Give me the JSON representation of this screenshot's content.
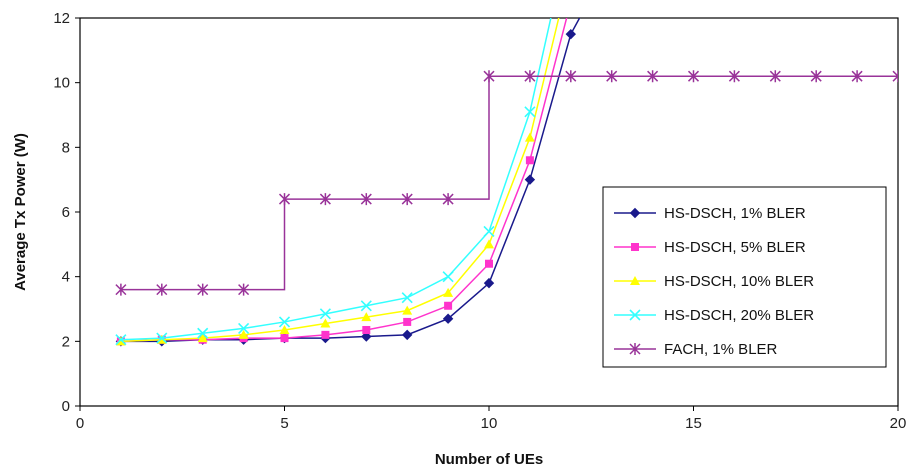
{
  "chart_data": {
    "type": "line",
    "xlabel": "Number of UEs",
    "ylabel": "Average Tx Power (W)",
    "xlim": [
      0,
      20
    ],
    "ylim": [
      0,
      12
    ],
    "xticks": [
      "0",
      "5",
      "10",
      "15",
      "20"
    ],
    "yticks": [
      "0",
      "2",
      "4",
      "6",
      "8",
      "10",
      "12"
    ],
    "grid": false,
    "legend_position": "right",
    "series": [
      {
        "name": "HS-DSCH, 1% BLER",
        "color": "#1a1a8c",
        "marker": "diamond",
        "line": "step-none",
        "x": [
          1,
          2,
          3,
          4,
          5,
          6,
          7,
          8,
          9,
          10,
          11,
          12,
          12.3
        ],
        "y": [
          2.0,
          2.0,
          2.05,
          2.05,
          2.1,
          2.1,
          2.15,
          2.2,
          2.7,
          3.8,
          7.0,
          11.5,
          12.2
        ]
      },
      {
        "name": "HS-DSCH, 5% BLER",
        "color": "#ff33cc",
        "marker": "square",
        "line": "step-none",
        "x": [
          1,
          2,
          3,
          4,
          5,
          6,
          7,
          8,
          9,
          10,
          11,
          12
        ],
        "y": [
          2.0,
          2.05,
          2.05,
          2.1,
          2.1,
          2.2,
          2.35,
          2.6,
          3.1,
          4.4,
          7.6,
          12.5
        ]
      },
      {
        "name": "HS-DSCH, 10% BLER",
        "color": "#ffff00",
        "marker": "triangle",
        "line": "step-none",
        "x": [
          1,
          2,
          3,
          4,
          5,
          6,
          7,
          8,
          9,
          10,
          11,
          11.8
        ],
        "y": [
          2.0,
          2.05,
          2.1,
          2.2,
          2.35,
          2.55,
          2.75,
          2.95,
          3.5,
          5.0,
          8.3,
          12.5
        ]
      },
      {
        "name": "HS-DSCH, 20% BLER",
        "color": "#33ffff",
        "marker": "x",
        "line": "step-none",
        "x": [
          1,
          2,
          3,
          4,
          5,
          6,
          7,
          8,
          9,
          10,
          11,
          11.6
        ],
        "y": [
          2.05,
          2.1,
          2.25,
          2.4,
          2.6,
          2.85,
          3.1,
          3.35,
          4.0,
          5.4,
          9.1,
          12.5
        ]
      },
      {
        "name": "FACH, 1% BLER",
        "color": "#993399",
        "marker": "star",
        "line": "step",
        "x": [
          1,
          2,
          3,
          4,
          5,
          6,
          7,
          8,
          9,
          10,
          11,
          12,
          13,
          14,
          15,
          16,
          17,
          18,
          19,
          20
        ],
        "y": [
          3.6,
          3.6,
          3.6,
          3.6,
          6.4,
          6.4,
          6.4,
          6.4,
          6.4,
          10.2,
          10.2,
          10.2,
          10.2,
          10.2,
          10.2,
          10.2,
          10.2,
          10.2,
          10.2,
          10.2
        ]
      }
    ]
  }
}
